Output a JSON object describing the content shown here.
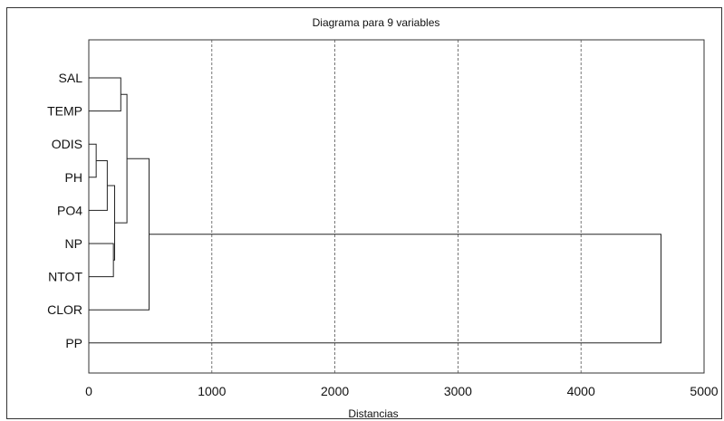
{
  "chart_data": {
    "type": "dendrogram",
    "title": "Diagrama para 9 variables",
    "xlabel": "Distancias",
    "ylabel": "",
    "xlim": [
      0,
      5000
    ],
    "xticks": [
      0,
      1000,
      2000,
      3000,
      4000,
      5000
    ],
    "grid": "vertical dashed",
    "leaves": [
      "SAL",
      "TEMP",
      "ODIS",
      "PH",
      "PO4",
      "NP",
      "NTOT",
      "CLOR",
      "PP"
    ],
    "merges": [
      {
        "a": "ODIS",
        "b": "PH",
        "height": 60
      },
      {
        "a": "NP",
        "b": "NTOT",
        "height": 200
      },
      {
        "a": "ODIS+PH",
        "b": "PO4",
        "height": 150
      },
      {
        "a": "ODIS+PH+PO4",
        "b": "NP+NTOT",
        "height": 210
      },
      {
        "a": "SAL",
        "b": "TEMP",
        "height": 260
      },
      {
        "a": "SAL+TEMP",
        "b": "ODIS+PH+PO4+NP+NTOT",
        "height": 310
      },
      {
        "a": "SAL+TEMP+ODIS+PH+PO4+NP+NTOT",
        "b": "CLOR",
        "height": 490
      },
      {
        "a": "SAL+TEMP+ODIS+PH+PO4+NP+NTOT+CLOR",
        "b": "PP",
        "height": 4650
      }
    ]
  }
}
